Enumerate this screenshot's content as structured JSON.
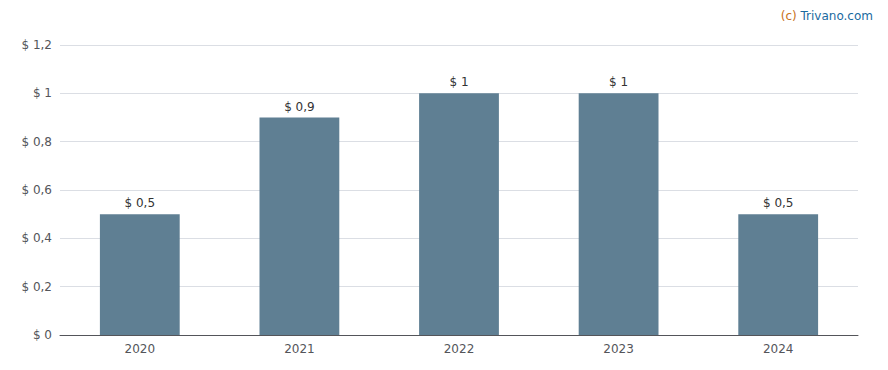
{
  "chart_data": {
    "type": "bar",
    "categories": [
      "2020",
      "2021",
      "2022",
      "2023",
      "2024"
    ],
    "values": [
      0.5,
      0.9,
      1.0,
      1.0,
      0.5
    ],
    "value_labels": [
      "$ 0,5",
      "$ 0,9",
      "$ 1",
      "$ 1",
      "$ 0,5"
    ],
    "data_labels": true,
    "color": "#5f7f93",
    "ylim": [
      0,
      1.2
    ],
    "yticks": [
      {
        "value": 0,
        "label": "$ 0"
      },
      {
        "value": 0.2,
        "label": "$ 0,2"
      },
      {
        "value": 0.4,
        "label": "$ 0,4"
      },
      {
        "value": 0.6,
        "label": "$ 0,6"
      },
      {
        "value": 0.8,
        "label": "$ 0,8"
      },
      {
        "value": 1.0,
        "label": "$ 1"
      },
      {
        "value": 1.2,
        "label": "$ 1,2"
      }
    ],
    "grid": true,
    "annotations": [
      {
        "text": "(c)",
        "color": "#c87020"
      },
      {
        "text": "Trivano.com",
        "color": "#1a6aa0"
      }
    ]
  }
}
